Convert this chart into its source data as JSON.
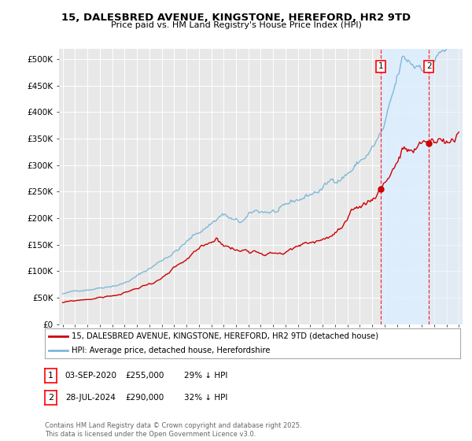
{
  "title": "15, DALESBRED AVENUE, KINGSTONE, HEREFORD, HR2 9TD",
  "subtitle": "Price paid vs. HM Land Registry's House Price Index (HPI)",
  "hpi_color": "#7fb8d8",
  "price_color": "#cc0000",
  "highlight_color": "#ddeeff",
  "legend_hpi": "HPI: Average price, detached house, Herefordshire",
  "legend_price": "15, DALESBRED AVENUE, KINGSTONE, HEREFORD, HR2 9TD (detached house)",
  "xlim_start": 1994.7,
  "xlim_end": 2027.3,
  "ylim_min": 0,
  "ylim_max": 520000,
  "yticks": [
    0,
    50000,
    100000,
    150000,
    200000,
    250000,
    300000,
    350000,
    400000,
    450000,
    500000
  ],
  "ytick_labels": [
    "£0",
    "£50K",
    "£100K",
    "£150K",
    "£200K",
    "£250K",
    "£300K",
    "£350K",
    "£400K",
    "£450K",
    "£500K"
  ],
  "transaction1_year": 2020.67,
  "transaction1_price": 255000,
  "transaction2_year": 2024.58,
  "transaction2_price": 290000,
  "footer": "Contains HM Land Registry data © Crown copyright and database right 2025.\nThis data is licensed under the Open Government Licence v3.0.",
  "background_color": "#ffffff",
  "plot_bg_color": "#e8e8e8"
}
